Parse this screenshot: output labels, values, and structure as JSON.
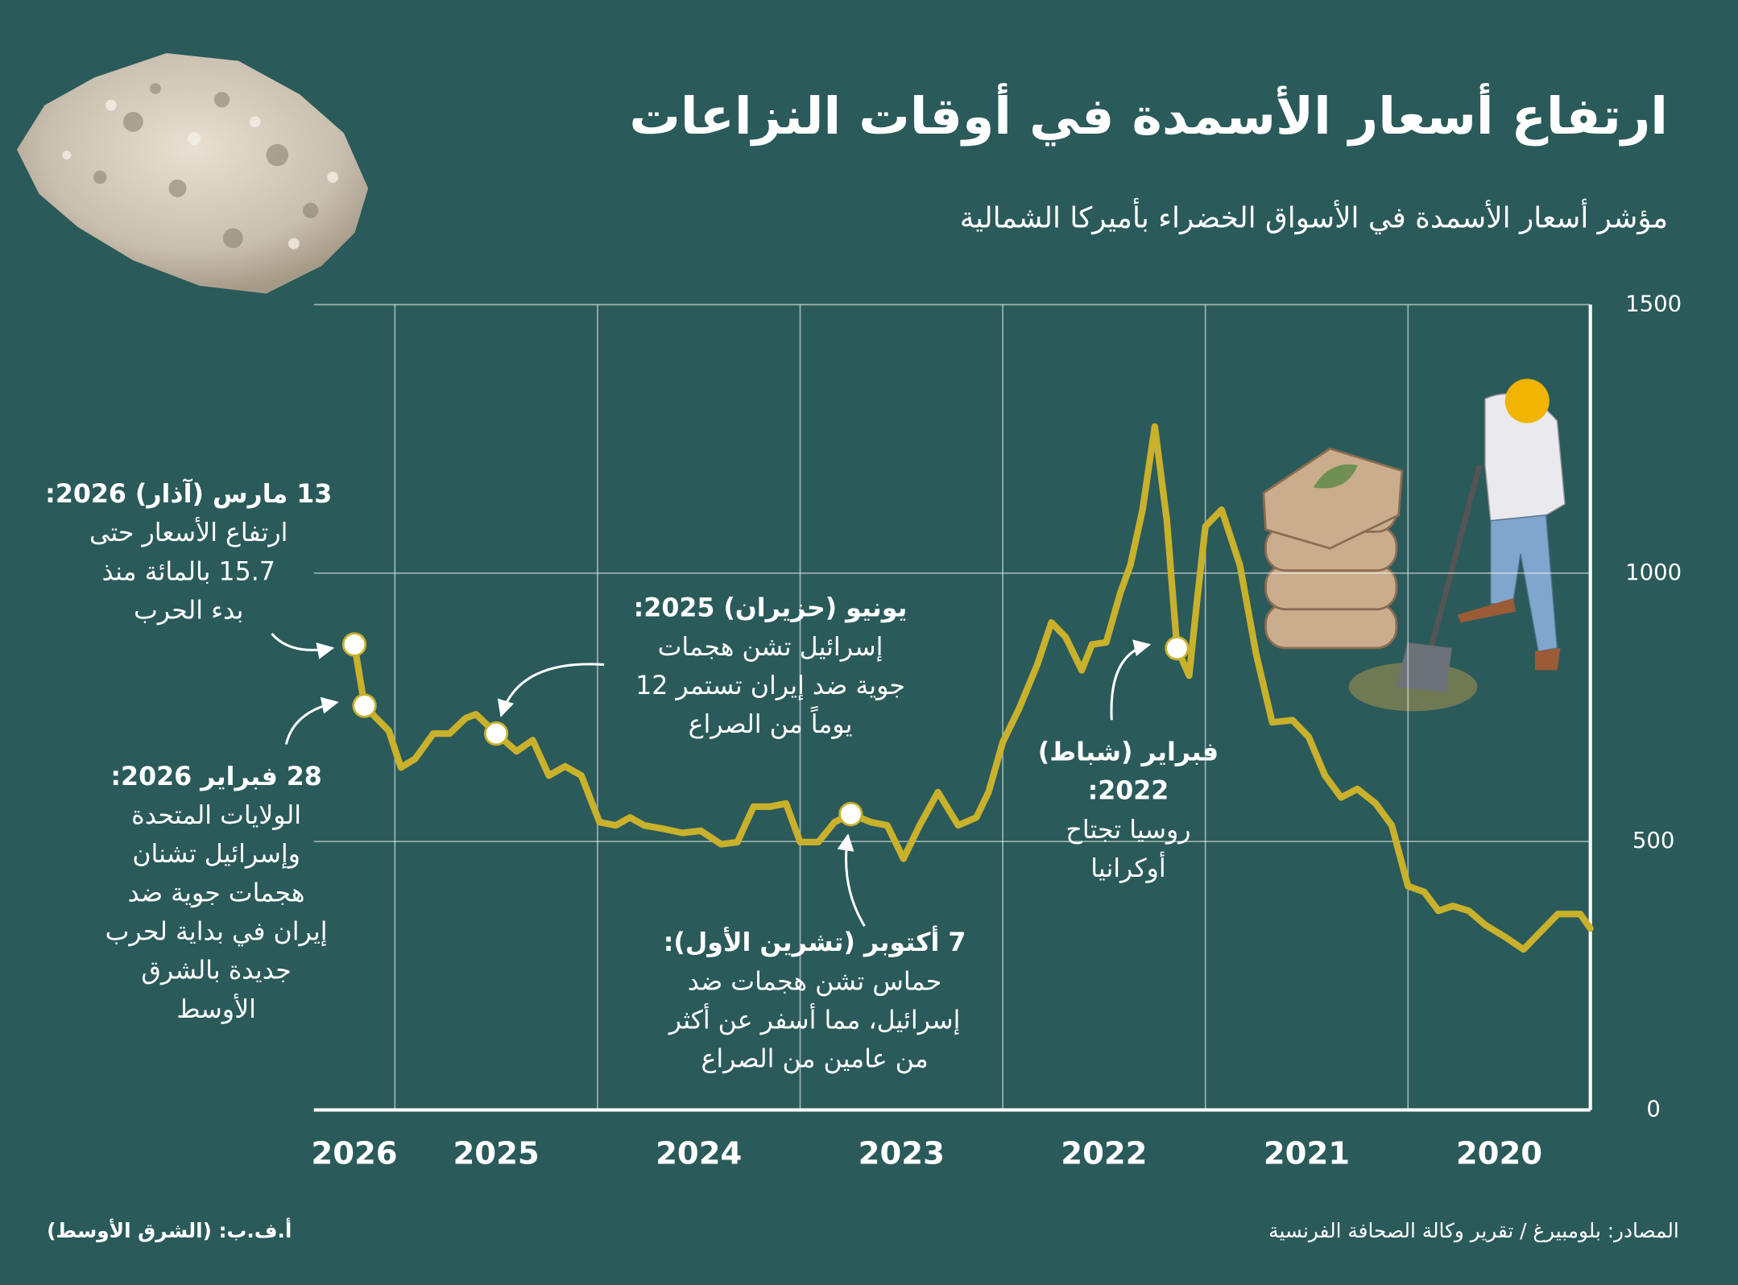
{
  "chart_data": {
    "type": "line",
    "title": "ارتفاع أسعار الأسمدة في أوقات النزاعات",
    "subtitle": "مؤشر أسعار الأسمدة في الأسواق الخضراء بأميركا الشمالية",
    "x": [
      2020.1,
      2020.15,
      2020.26,
      2020.34,
      2020.43,
      2020.52,
      2020.62,
      2020.7,
      2020.78,
      2020.85,
      2020.92,
      2021.0,
      2021.08,
      2021.16,
      2021.25,
      2021.33,
      2021.41,
      2021.49,
      2021.57,
      2021.67,
      2021.75,
      2021.83,
      2021.92,
      2022.0,
      2022.04,
      2022.08,
      2022.14,
      2022.19,
      2022.25,
      2022.31,
      2022.37,
      2022.42,
      2022.49,
      2022.56,
      2022.61,
      2022.69,
      2022.76,
      2022.83,
      2022.92,
      2023.0,
      2023.07,
      2023.13,
      2023.22,
      2023.32,
      2023.41,
      2023.49,
      2023.57,
      2023.65,
      2023.75,
      2023.83,
      2023.91,
      2024.0,
      2024.07,
      2024.15,
      2024.23,
      2024.31,
      2024.39,
      2024.49,
      2024.58,
      2024.68,
      2024.77,
      2024.84,
      2024.91,
      2024.99,
      2025.08,
      2025.16,
      2025.24,
      2025.32,
      2025.4,
      2025.5,
      2025.6,
      2025.65,
      2025.73,
      2025.81,
      2025.9,
      2025.97,
      2026.03,
      2026.11,
      2026.15,
      2026.2
    ],
    "values": [
      338,
      365,
      365,
      334,
      299,
      322,
      345,
      371,
      380,
      371,
      406,
      417,
      530,
      571,
      598,
      582,
      623,
      695,
      726,
      722,
      850,
      1015,
      1118,
      1087,
      953,
      809,
      860,
      1098,
      1273,
      1118,
      1015,
      963,
      871,
      867,
      819,
      881,
      908,
      829,
      747,
      685,
      592,
      545,
      530,
      592,
      530,
      468,
      530,
      536,
      551,
      536,
      499,
      499,
      571,
      565,
      565,
      499,
      495,
      520,
      516,
      524,
      530,
      545,
      530,
      536,
      623,
      640,
      623,
      689,
      668,
      701,
      737,
      730,
      701,
      701,
      654,
      638,
      706,
      737,
      753,
      867
    ],
    "color": "#c9b12c",
    "xlim": [
      2026.4,
      2020.1
    ],
    "xticks": [
      2020,
      2021,
      2022,
      2023,
      2024,
      2025,
      2026
    ],
    "ylim": [
      0,
      1500
    ],
    "yticks": [
      0,
      500,
      1000,
      1500
    ],
    "grid": true,
    "annotations": [
      {
        "x": 2026.2,
        "heading": [
          "13 مارس (آذار) 2026:"
        ],
        "body": [
          "ارتفاع الأسعار حتى",
          "15.7 بالمائة منذ",
          "بدء الحرب"
        ]
      },
      {
        "x": 2026.15,
        "heading": [
          "28 فبراير 2026:"
        ],
        "body": [
          "الولايات المتحدة",
          "وإسرائيل تشنان",
          "هجمات جوية ضد",
          "إيران في بداية لحرب",
          "جديدة بالشرق",
          "الأوسط"
        ]
      },
      {
        "x": 2025.5,
        "heading": [
          "يونيو (حزيران) 2025:"
        ],
        "body": [
          "إسرائيل تشن هجمات",
          "جوية ضد إيران تستمر 12",
          "يوماً من الصراع"
        ]
      },
      {
        "x": 2023.75,
        "heading": [
          "7 أكتوبر (تشرين الأول):"
        ],
        "body": [
          "حماس تشن هجمات ضد",
          "إسرائيل، مما أسفر عن أكثر",
          "من عامين من الصراع"
        ]
      },
      {
        "x": 2022.14,
        "heading": [
          "فبراير (شباط)",
          "2022:"
        ],
        "body": [
          "روسيا تجتاح",
          "أوكرانيا"
        ]
      }
    ]
  },
  "source": "المصادر: بلومبيرغ / تقرير وكالة الصحافة الفرنسية",
  "credit": "أ.ف.ب: (الشرق الأوسط)"
}
